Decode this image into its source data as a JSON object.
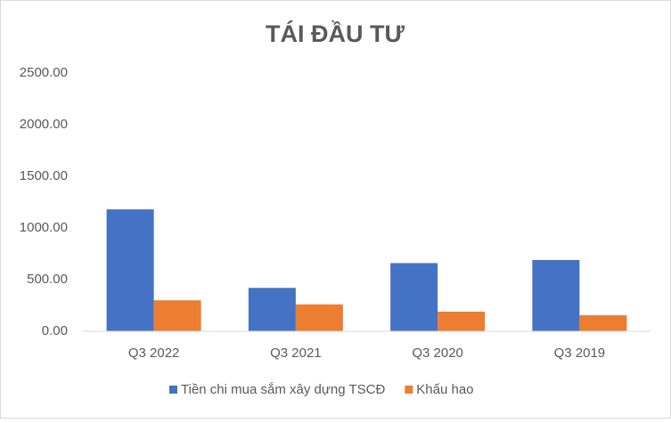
{
  "chart_data": {
    "type": "bar",
    "title": "TÁI ĐẦU TƯ",
    "categories": [
      "Q3 2022",
      "Q3 2021",
      "Q3 2020",
      "Q3 2019"
    ],
    "series": [
      {
        "name": "Tiền chi mua sắm xây dựng TSCĐ",
        "color": "#4472c4",
        "values": [
          1180,
          420,
          660,
          690
        ]
      },
      {
        "name": "Khấu hao",
        "color": "#ed7d31",
        "values": [
          300,
          260,
          190,
          155
        ]
      }
    ],
    "ylim": [
      0,
      2500
    ],
    "yticks": [
      {
        "value": 0,
        "label": "0.00"
      },
      {
        "value": 500,
        "label": "500.00"
      },
      {
        "value": 1000,
        "label": "1000.00"
      },
      {
        "value": 1500,
        "label": "1500.00"
      },
      {
        "value": 2000,
        "label": "2000.00"
      },
      {
        "value": 2500,
        "label": "2500.00"
      }
    ],
    "grid": false,
    "legend": "bottom"
  }
}
